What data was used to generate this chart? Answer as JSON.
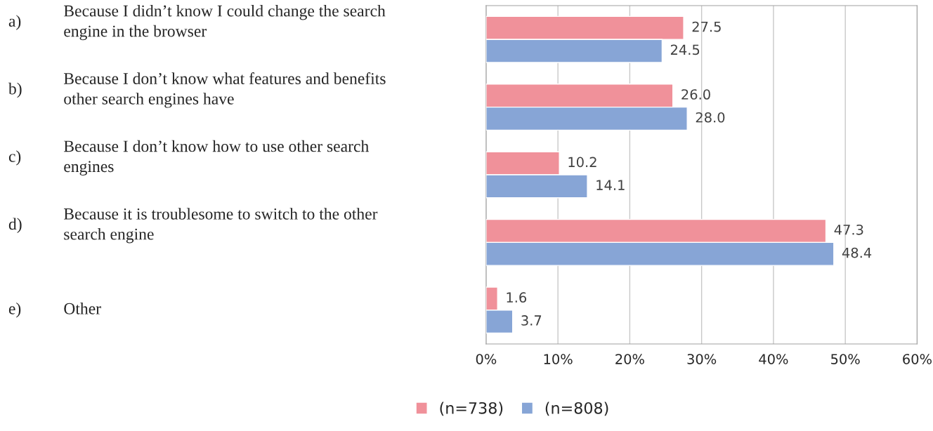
{
  "chart_data": {
    "type": "bar",
    "orientation": "horizontal",
    "categories": [
      "a) Because I didn’t know I could change the search\nengine in the browser",
      "b) Because I don’t know what features and benefits\nother search engines have",
      "c) Because I don’t know how to use other search\nengines",
      "d) Because it is troublesome to switch to the other\nsearch engine",
      "e) Other"
    ],
    "series": [
      {
        "name": "(n=738)",
        "color": "#f0919a",
        "values": [
          27.5,
          26.0,
          10.2,
          47.3,
          1.6
        ],
        "value_labels": [
          "27.5",
          "26.0",
          "10.2",
          "47.3",
          "1.6"
        ]
      },
      {
        "name": "(n=808)",
        "color": "#87a5d6",
        "values": [
          24.5,
          28.0,
          14.1,
          48.4,
          3.7
        ],
        "value_labels": [
          "24.5",
          "28.0",
          "14.1",
          "48.4",
          "3.7"
        ]
      }
    ],
    "xlim": [
      0,
      60
    ],
    "xticks": [
      {
        "value": 0,
        "label": "0%"
      },
      {
        "value": 10,
        "label": "10%"
      },
      {
        "value": 20,
        "label": "20%"
      },
      {
        "value": 30,
        "label": "30%"
      },
      {
        "value": 40,
        "label": "40%"
      },
      {
        "value": 50,
        "label": "50%"
      },
      {
        "value": 60,
        "label": "60%"
      }
    ],
    "grid": "x",
    "legend": "bottom"
  }
}
